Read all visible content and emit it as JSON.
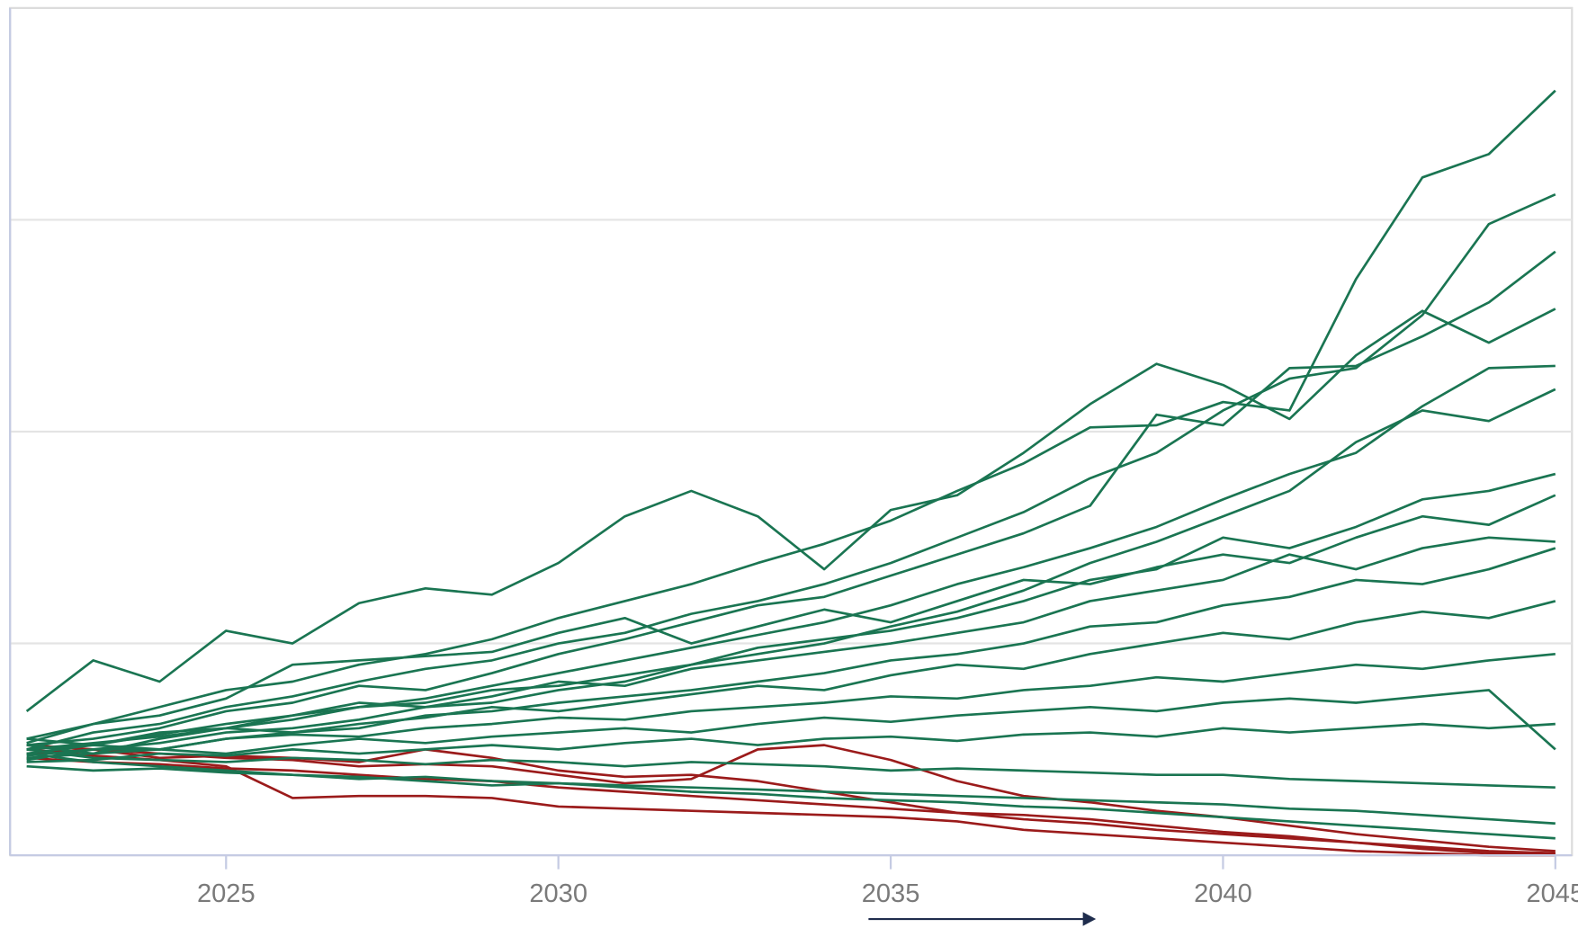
{
  "chart_data": {
    "type": "line",
    "x": [
      2022,
      2023,
      2024,
      2025,
      2026,
      2027,
      2028,
      2029,
      2030,
      2031,
      2032,
      2033,
      2034,
      2035,
      2036,
      2037,
      2038,
      2039,
      2040,
      2041,
      2042,
      2043,
      2044,
      2045
    ],
    "xlim": [
      2021.75,
      2045.25
    ],
    "xticks": [
      2025,
      2030,
      2035,
      2040,
      2045
    ],
    "ylim": [
      0,
      4
    ],
    "yticks": [
      1,
      2,
      3
    ],
    "grid": true,
    "series": [
      {
        "color": "#9b1b1b",
        "values": [
          0.5,
          0.47,
          0.45,
          0.42,
          0.27,
          0.28,
          0.28,
          0.27,
          0.23,
          0.22,
          0.21,
          0.2,
          0.19,
          0.18,
          0.16,
          0.12,
          0.1,
          0.08,
          0.06,
          0.04,
          0.02,
          0.01,
          0.0,
          0.0
        ]
      },
      {
        "color": "#9b1b1b",
        "values": [
          0.48,
          0.5,
          0.46,
          0.47,
          0.46,
          0.44,
          0.5,
          0.46,
          0.4,
          0.37,
          0.38,
          0.35,
          0.3,
          0.25,
          0.2,
          0.19,
          0.17,
          0.14,
          0.11,
          0.09,
          0.06,
          0.03,
          0.01,
          0.01
        ]
      },
      {
        "color": "#9b1b1b",
        "values": [
          0.52,
          0.5,
          0.48,
          0.46,
          0.45,
          0.42,
          0.43,
          0.42,
          0.38,
          0.34,
          0.36,
          0.5,
          0.52,
          0.45,
          0.35,
          0.28,
          0.25,
          0.21,
          0.18,
          0.14,
          0.1,
          0.07,
          0.04,
          0.02
        ]
      },
      {
        "color": "#9b1b1b",
        "values": [
          0.46,
          0.44,
          0.43,
          0.41,
          0.4,
          0.38,
          0.36,
          0.35,
          0.32,
          0.3,
          0.28,
          0.26,
          0.24,
          0.22,
          0.2,
          0.17,
          0.15,
          0.12,
          0.1,
          0.08,
          0.06,
          0.04,
          0.02,
          0.01
        ]
      },
      {
        "color": "#1a7552",
        "values": [
          0.68,
          0.92,
          0.82,
          1.06,
          1.0,
          1.19,
          1.26,
          1.23,
          1.38,
          1.6,
          1.72,
          1.6,
          1.35,
          1.63,
          1.7,
          1.9,
          2.13,
          2.32,
          2.22,
          2.06,
          2.36,
          2.57,
          2.42,
          2.58
        ]
      },
      {
        "color": "#1a7552",
        "values": [
          0.55,
          0.62,
          0.7,
          0.78,
          0.82,
          0.9,
          0.95,
          1.02,
          1.12,
          1.2,
          1.28,
          1.38,
          1.47,
          1.58,
          1.72,
          1.85,
          2.02,
          2.03,
          2.14,
          2.1,
          2.72,
          3.2,
          3.31,
          3.61
        ]
      },
      {
        "color": "#1a7552",
        "values": [
          0.5,
          0.58,
          0.62,
          0.7,
          0.75,
          0.82,
          0.88,
          0.92,
          1.0,
          1.05,
          1.14,
          1.2,
          1.28,
          1.38,
          1.5,
          1.62,
          1.78,
          1.9,
          2.1,
          2.25,
          2.3,
          2.55,
          2.98,
          3.12
        ]
      },
      {
        "color": "#1a7552",
        "values": [
          0.52,
          0.55,
          0.6,
          0.68,
          0.72,
          0.8,
          0.78,
          0.86,
          0.95,
          1.02,
          1.1,
          1.18,
          1.22,
          1.32,
          1.42,
          1.52,
          1.65,
          2.08,
          2.03,
          2.3,
          2.31,
          2.45,
          2.61,
          2.85
        ]
      },
      {
        "color": "#1a7552",
        "values": [
          0.48,
          0.52,
          0.57,
          0.62,
          0.66,
          0.7,
          0.74,
          0.8,
          0.86,
          0.92,
          0.98,
          1.04,
          1.1,
          1.18,
          1.28,
          1.36,
          1.45,
          1.55,
          1.68,
          1.8,
          1.9,
          2.12,
          2.3,
          2.31
        ]
      },
      {
        "color": "#1a7552",
        "values": [
          0.45,
          0.5,
          0.53,
          0.58,
          0.6,
          0.64,
          0.7,
          0.72,
          0.78,
          0.82,
          0.9,
          0.95,
          1.0,
          1.08,
          1.15,
          1.25,
          1.38,
          1.48,
          1.6,
          1.72,
          1.95,
          2.1,
          2.05,
          2.2
        ]
      },
      {
        "color": "#1a7552",
        "values": [
          0.5,
          0.53,
          0.56,
          0.6,
          0.64,
          0.7,
          0.72,
          0.78,
          0.8,
          0.85,
          0.9,
          0.98,
          1.02,
          1.06,
          1.12,
          1.2,
          1.3,
          1.35,
          1.5,
          1.45,
          1.55,
          1.68,
          1.72,
          1.8
        ]
      },
      {
        "color": "#1a7552",
        "values": [
          0.55,
          0.52,
          0.58,
          0.6,
          0.66,
          0.72,
          0.7,
          0.75,
          0.82,
          0.8,
          0.88,
          0.92,
          0.96,
          1.0,
          1.05,
          1.1,
          1.2,
          1.25,
          1.3,
          1.42,
          1.35,
          1.45,
          1.5,
          1.48
        ]
      },
      {
        "color": "#1a7552",
        "values": [
          0.47,
          0.5,
          0.5,
          0.55,
          0.58,
          0.6,
          0.66,
          0.68,
          0.72,
          0.75,
          0.78,
          0.82,
          0.86,
          0.92,
          0.95,
          1.0,
          1.08,
          1.1,
          1.18,
          1.22,
          1.3,
          1.28,
          1.35,
          1.45
        ]
      },
      {
        "color": "#1a7552",
        "values": [
          0.52,
          0.48,
          0.55,
          0.6,
          0.58,
          0.62,
          0.65,
          0.7,
          0.68,
          0.72,
          0.76,
          0.8,
          0.78,
          0.85,
          0.9,
          0.88,
          0.95,
          1.0,
          1.05,
          1.02,
          1.1,
          1.15,
          1.12,
          1.2
        ]
      },
      {
        "color": "#1a7552",
        "values": [
          0.5,
          0.52,
          0.5,
          0.55,
          0.57,
          0.56,
          0.6,
          0.62,
          0.65,
          0.64,
          0.68,
          0.7,
          0.72,
          0.75,
          0.74,
          0.78,
          0.8,
          0.84,
          0.82,
          0.86,
          0.9,
          0.88,
          0.92,
          0.95
        ]
      },
      {
        "color": "#1a7552",
        "values": [
          0.46,
          0.48,
          0.5,
          0.48,
          0.52,
          0.55,
          0.53,
          0.56,
          0.58,
          0.6,
          0.58,
          0.62,
          0.65,
          0.63,
          0.66,
          0.68,
          0.7,
          0.68,
          0.72,
          0.74,
          0.72,
          0.75,
          0.78,
          0.5
        ]
      },
      {
        "color": "#1a7552",
        "values": [
          0.44,
          0.45,
          0.48,
          0.47,
          0.5,
          0.48,
          0.5,
          0.52,
          0.5,
          0.53,
          0.55,
          0.52,
          0.55,
          0.56,
          0.54,
          0.57,
          0.58,
          0.56,
          0.6,
          0.58,
          0.6,
          0.62,
          0.6,
          0.62
        ]
      },
      {
        "color": "#1a7552",
        "values": [
          0.5,
          0.46,
          0.45,
          0.44,
          0.46,
          0.45,
          0.43,
          0.45,
          0.44,
          0.42,
          0.44,
          0.43,
          0.42,
          0.4,
          0.41,
          0.4,
          0.39,
          0.38,
          0.38,
          0.36,
          0.35,
          0.34,
          0.33,
          0.32
        ]
      },
      {
        "color": "#1a7552",
        "values": [
          0.42,
          0.4,
          0.41,
          0.39,
          0.38,
          0.36,
          0.37,
          0.35,
          0.34,
          0.33,
          0.32,
          0.31,
          0.3,
          0.29,
          0.28,
          0.27,
          0.26,
          0.25,
          0.24,
          0.22,
          0.21,
          0.19,
          0.17,
          0.15
        ]
      },
      {
        "color": "#1a7552",
        "values": [
          0.48,
          0.44,
          0.42,
          0.4,
          0.38,
          0.37,
          0.35,
          0.33,
          0.34,
          0.32,
          0.3,
          0.29,
          0.27,
          0.26,
          0.25,
          0.23,
          0.22,
          0.2,
          0.18,
          0.16,
          0.14,
          0.12,
          0.1,
          0.08
        ]
      },
      {
        "color": "#1a7552",
        "values": [
          0.53,
          0.62,
          0.66,
          0.74,
          0.9,
          0.92,
          0.94,
          0.96,
          1.05,
          1.12,
          1.0,
          1.08,
          1.16,
          1.1,
          1.2,
          1.3,
          1.28,
          1.36,
          1.42,
          1.38,
          1.5,
          1.6,
          1.56,
          1.7
        ]
      }
    ]
  }
}
